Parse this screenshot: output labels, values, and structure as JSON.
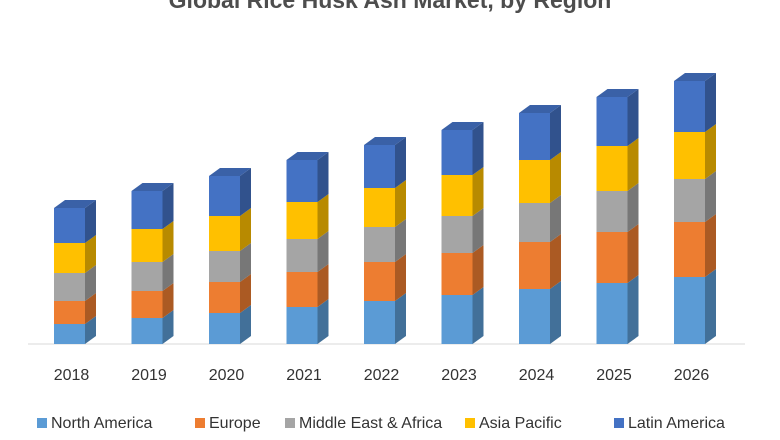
{
  "chart_data": {
    "type": "bar",
    "stacked": true,
    "style": "3d-column",
    "title": "Global Rice Husk Ash Market, by Region",
    "xlabel": "",
    "ylabel": "",
    "categories": [
      "2018",
      "2019",
      "2020",
      "2021",
      "2022",
      "2023",
      "2024",
      "2025",
      "2026"
    ],
    "ylim": [
      0,
      270
    ],
    "grid": false,
    "legend_position": "bottom",
    "series": [
      {
        "name": "North America",
        "color": "#5B9BD5",
        "values": [
          20,
          26,
          31,
          37,
          43,
          49,
          55,
          61,
          67
        ]
      },
      {
        "name": "Europe",
        "color": "#ED7D31",
        "values": [
          23,
          27,
          31,
          35,
          39,
          42,
          47,
          51,
          55
        ]
      },
      {
        "name": "Middle East & Africa",
        "color": "#A5A5A5",
        "values": [
          28,
          29,
          31,
          33,
          35,
          37,
          39,
          41,
          43
        ]
      },
      {
        "name": "Asia Pacific",
        "color": "#FFC000",
        "values": [
          30,
          33,
          35,
          37,
          39,
          41,
          43,
          45,
          47
        ]
      },
      {
        "name": "Latin America",
        "color": "#4472C4",
        "values": [
          35,
          38,
          40,
          42,
          43,
          45,
          47,
          49,
          51
        ]
      }
    ]
  }
}
